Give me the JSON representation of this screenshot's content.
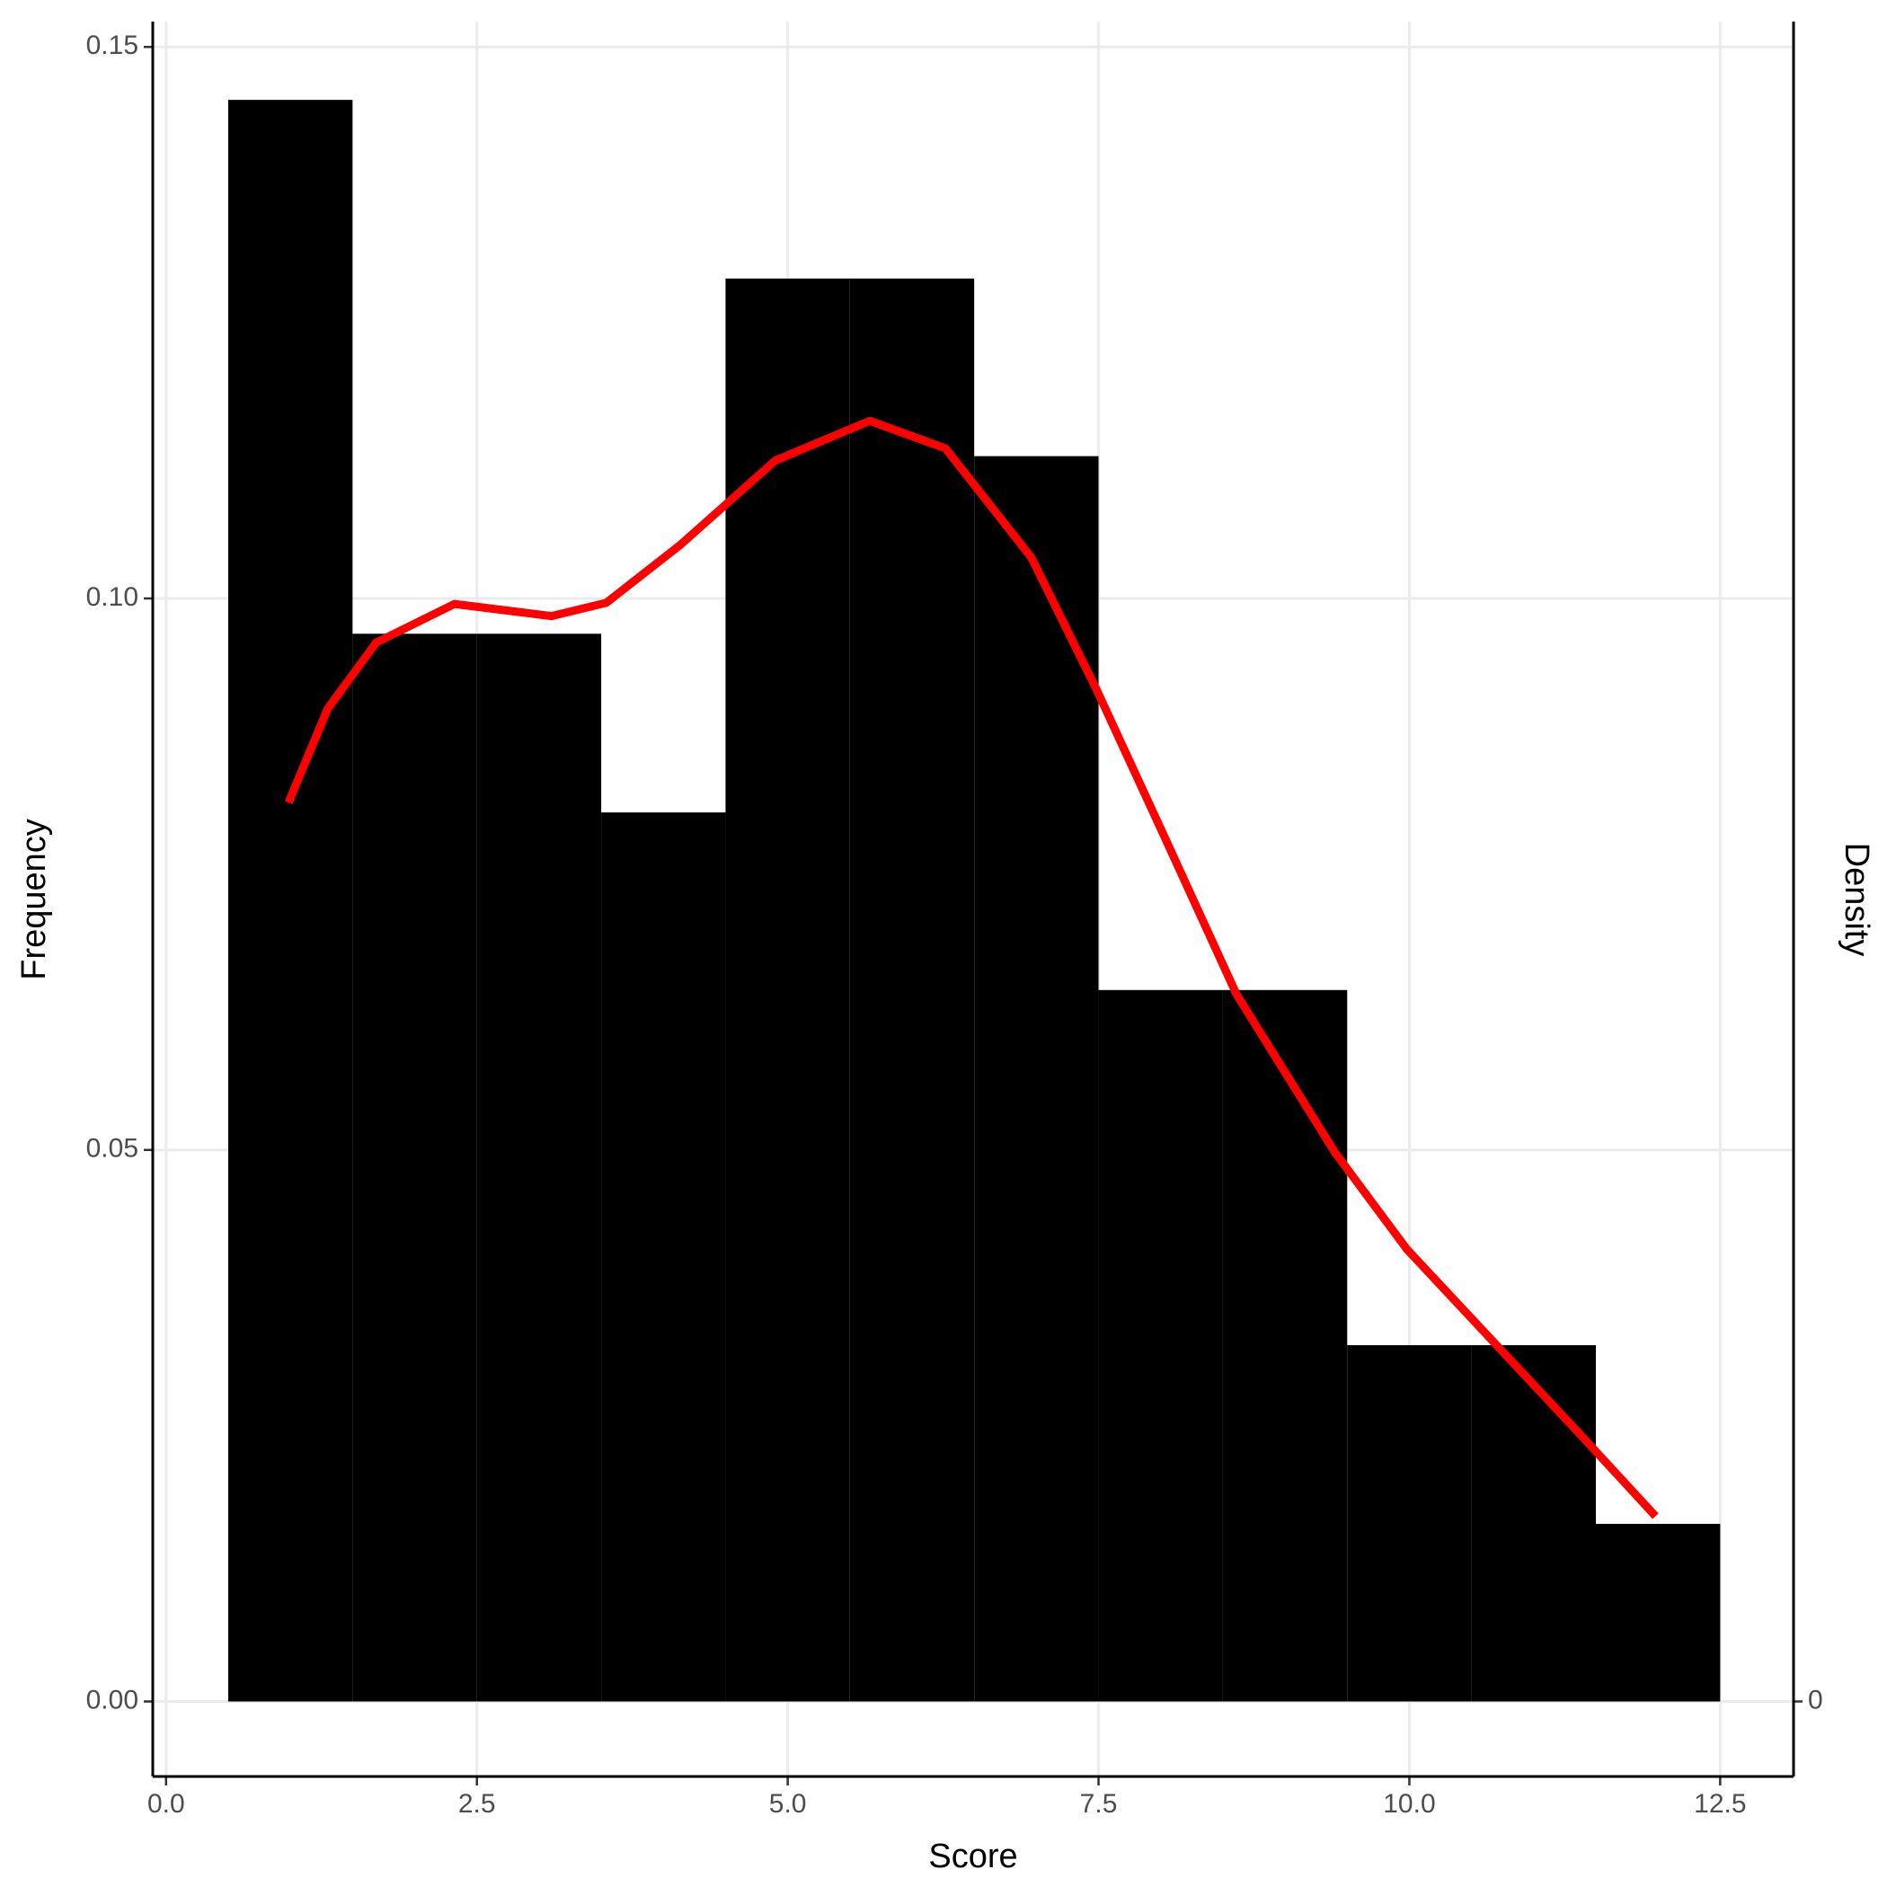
{
  "chart_data": {
    "type": "histogram",
    "xlabel": "Score",
    "ylabel": "Frequency",
    "y2label": "Density",
    "bins": [
      0.5,
      1.5,
      2.5,
      3.5,
      4.5,
      5.5,
      6.5,
      7.5,
      8.5,
      9.5,
      10.5,
      11.5,
      12.5
    ],
    "values": [
      0.1452,
      0.0968,
      0.0968,
      0.0806,
      0.129,
      0.129,
      0.1129,
      0.0645,
      0.0645,
      0.0323,
      0.0323,
      0.0161
    ],
    "color": "#000000",
    "lines": [
      {
        "axis": "y2",
        "color": "#ff0000",
        "x": [
          0.985,
          1.3,
          1.69,
          2.32,
          3.1,
          3.54,
          4.13,
          4.9,
          5.66,
          6.27,
          6.96,
          7.49,
          8.03,
          8.61,
          9.4,
          9.98,
          10.71,
          11.35,
          11.98
        ],
        "values": [
          0.0815,
          0.09,
          0.096,
          0.0995,
          0.0984,
          0.0996,
          0.1048,
          0.1125,
          0.1161,
          0.1136,
          0.1037,
          0.0916,
          0.0784,
          0.0641,
          0.0498,
          0.041,
          0.0322,
          0.0245,
          0.0168
        ]
      }
    ],
    "xlim": [
      -0.107,
      13.09
    ],
    "xticks": [
      {
        "value": 0,
        "label": "0.0"
      },
      2.5,
      {
        "value": 5,
        "label": "5.0"
      },
      7.5,
      {
        "value": 10,
        "label": "10.0"
      },
      12.5
    ],
    "ylim": [
      -0.0068,
      0.1523
    ],
    "yticks": [
      {
        "value": 0,
        "label": "0.00"
      },
      0.05,
      {
        "value": 0.1,
        "label": "0.10"
      },
      0.15
    ],
    "y2lim": [
      -0.0068,
      0.1523
    ],
    "y2ticks": [
      0
    ],
    "grid": true
  }
}
